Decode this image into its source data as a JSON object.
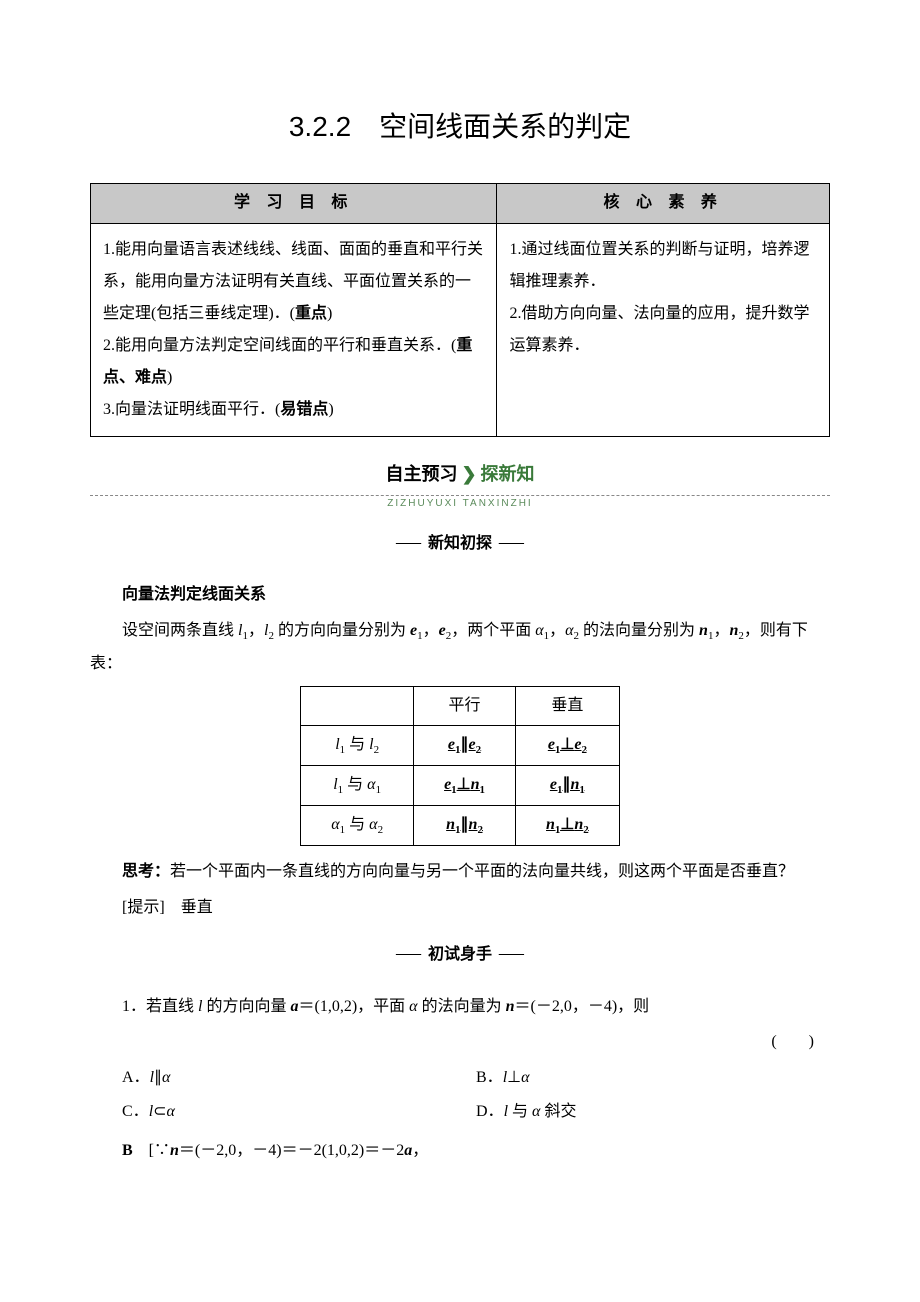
{
  "title": "3.2.2　空间线面关系的判定",
  "main_table": {
    "headers": [
      "学 习 目 标",
      "核 心 素 养"
    ],
    "left_cell": "1.能用向量语言表述线线、线面、面面的垂直和平行关系，能用向量方法证明有关直线、平面位置关系的一些定理(包括三垂线定理)．(<b>重点</b>)\n2.能用向量方法判定空间线面的平行和垂直关系．(<b>重点、难点</b>)\n3.向量法证明线面平行．(<b>易错点</b>)",
    "right_cell": "1.通过线面位置关系的判断与证明，培养逻辑推理素养．\n2.借助方向向量、法向量的应用，提升数学运算素养．",
    "header_bg": "#c8c8c8",
    "border_color": "#000000"
  },
  "banner1": {
    "left": "自主预习",
    "sep": "❯",
    "right": "探新知",
    "pinyin": "ZIZHUYUXI TANXINZHI"
  },
  "subheader1": "新知初探",
  "section1": {
    "heading": "向量法判定线面关系",
    "intro": "设空间两条直线 l₁，l₂ 的方向向量分别为 e₁，e₂，两个平面 α₁，α₂ 的法向量分别为 n₁，n₂，则有下表："
  },
  "vector_table": {
    "headers": [
      "",
      "平行",
      "垂直"
    ],
    "rows": [
      {
        "label": "l₁ 与 l₂",
        "parallel": "e₁∥e₂",
        "perp": "e₁⊥e₂"
      },
      {
        "label": "l₁ 与 α₁",
        "parallel": "e₁⊥n₁",
        "perp": "e₁∥n₁"
      },
      {
        "label": "α₁ 与 α₂",
        "parallel": "n₁∥n₂",
        "perp": "n₁⊥n₂"
      }
    ]
  },
  "thinking": {
    "label": "思考：",
    "text": "若一个平面内一条直线的方向向量与另一个平面的法向量共线，则这两个平面是否垂直？"
  },
  "hint": {
    "label": "[提示]",
    "text": "垂直"
  },
  "subheader2": "初试身手",
  "question1": {
    "stem": "1．若直线 l 的方向向量 a＝(1,0,2)，平面 α 的法向量为 n＝(－2,0，－4)，则",
    "paren": "(　　)",
    "options": {
      "A": "A．l∥α",
      "B": "B．l⊥α",
      "C": "C．l⊂α",
      "D": "D．l 与 α 斜交"
    },
    "answer_label": "B",
    "answer_text": "[∵n＝(－2,0，－4)＝－2(1,0,2)＝－2a，"
  },
  "colors": {
    "bg": "#ffffff",
    "text": "#000000",
    "banner_accent": "#3a7a3a",
    "pinyin_color": "#5a8a5a",
    "dash_color": "#888888"
  },
  "fonts": {
    "body": "SimSun",
    "heading": "SimHei",
    "title_size_pt": 28,
    "body_size_pt": 16
  }
}
